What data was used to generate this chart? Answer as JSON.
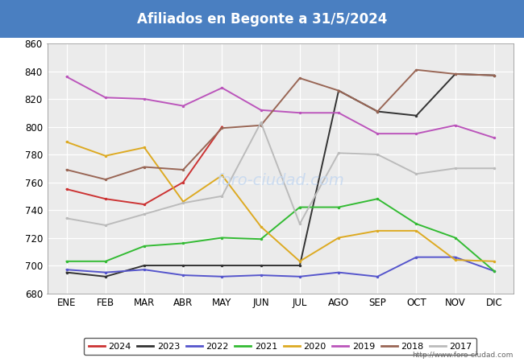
{
  "title": "Afiliados en Begonte a 31/5/2024",
  "title_bgcolor": "#4a7fc1",
  "title_color": "white",
  "ylim": [
    680,
    860
  ],
  "yticks": [
    680,
    700,
    720,
    740,
    760,
    780,
    800,
    820,
    840,
    860
  ],
  "months": [
    "ENE",
    "FEB",
    "MAR",
    "ABR",
    "MAY",
    "JUN",
    "JUL",
    "AGO",
    "SEP",
    "OCT",
    "NOV",
    "DIC"
  ],
  "footer_url": "http://www.foro-ciudad.com",
  "series": {
    "2024": {
      "color": "#cc3333",
      "data": [
        755,
        748,
        744,
        760,
        800,
        null,
        null,
        null,
        null,
        null,
        null,
        null
      ]
    },
    "2023": {
      "color": "#333333",
      "data": [
        695,
        692,
        700,
        700,
        700,
        700,
        700,
        826,
        811,
        808,
        838,
        837
      ]
    },
    "2022": {
      "color": "#5555cc",
      "data": [
        697,
        695,
        697,
        693,
        692,
        693,
        692,
        695,
        692,
        706,
        706,
        696
      ]
    },
    "2021": {
      "color": "#33bb33",
      "data": [
        703,
        703,
        714,
        716,
        720,
        719,
        742,
        742,
        748,
        730,
        720,
        696
      ]
    },
    "2020": {
      "color": "#ddaa22",
      "data": [
        789,
        779,
        785,
        746,
        765,
        728,
        703,
        720,
        725,
        725,
        704,
        703
      ]
    },
    "2019": {
      "color": "#bb55bb",
      "data": [
        836,
        821,
        820,
        815,
        828,
        812,
        810,
        810,
        795,
        795,
        801,
        792
      ]
    },
    "2018": {
      "color": "#996655",
      "data": [
        769,
        762,
        771,
        769,
        799,
        801,
        835,
        826,
        811,
        841,
        838,
        837
      ]
    },
    "2017": {
      "color": "#bbbbbb",
      "data": [
        734,
        729,
        737,
        745,
        750,
        803,
        730,
        781,
        780,
        766,
        770,
        770
      ]
    }
  },
  "years_order": [
    "2024",
    "2023",
    "2022",
    "2021",
    "2020",
    "2019",
    "2018",
    "2017"
  ]
}
